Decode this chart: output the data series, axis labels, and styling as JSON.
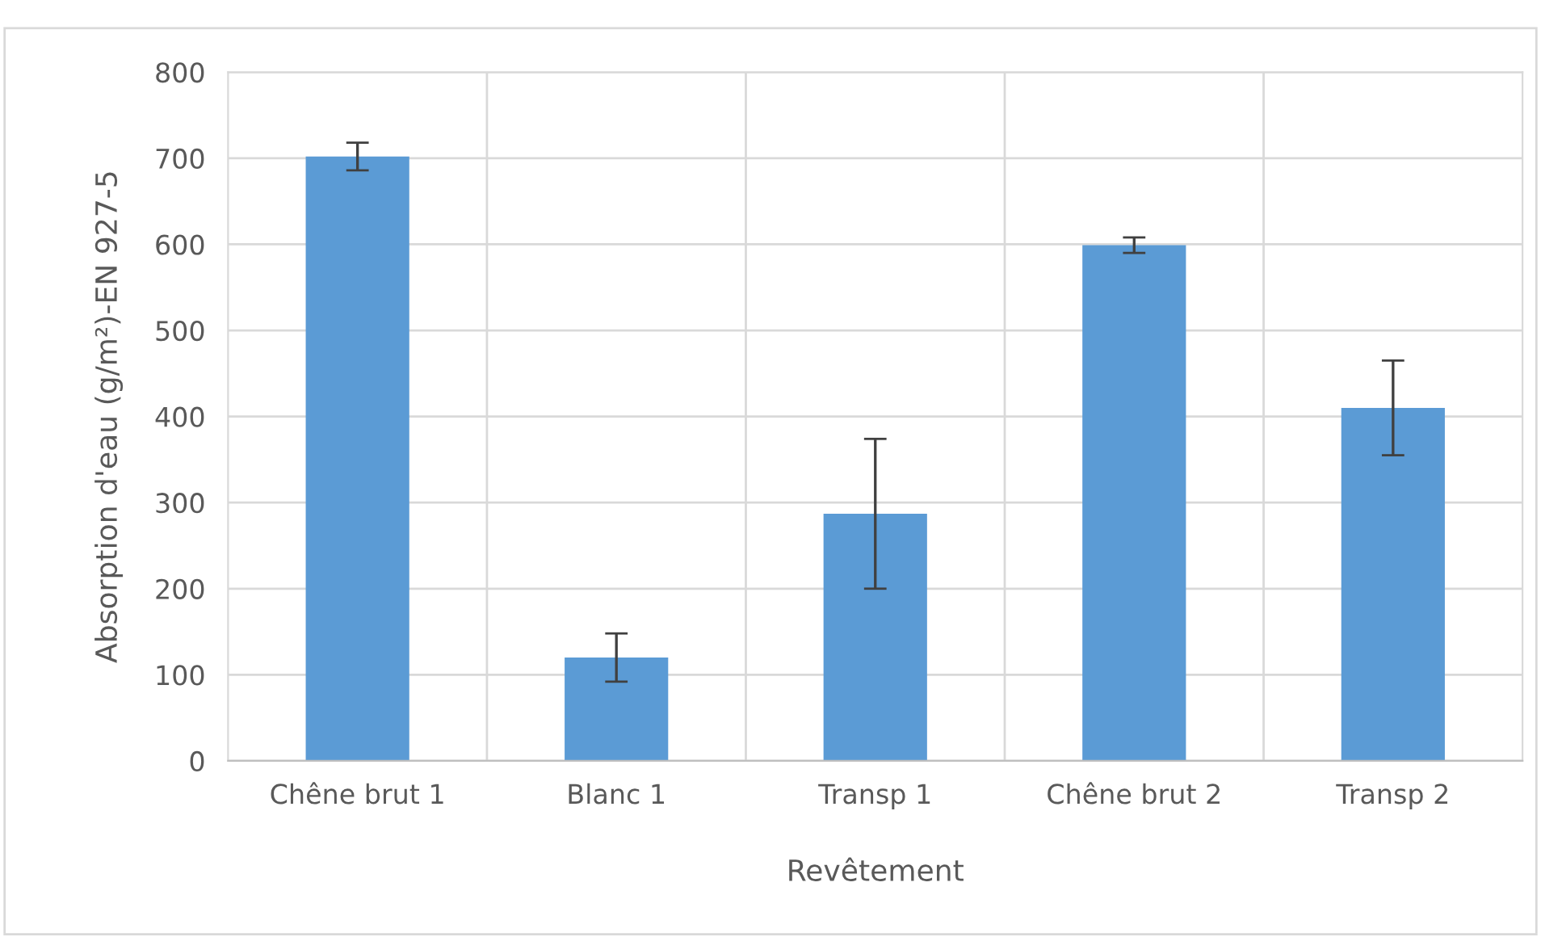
{
  "chart_data": {
    "type": "bar",
    "xlabel": "Revêtement",
    "ylabel": "Absorption d'eau (g/m²)-EN 927-5",
    "categories": [
      "Chêne brut 1",
      "Blanc 1",
      "Transp 1",
      "Chêne brut 2",
      "Transp 2"
    ],
    "values": [
      702,
      120,
      287,
      599,
      410
    ],
    "errors": [
      16,
      28,
      87,
      9,
      55
    ],
    "color": "#5b9bd5",
    "ylim": [
      0,
      800
    ],
    "yticks": [
      0,
      100,
      200,
      300,
      400,
      500,
      600,
      700,
      800
    ],
    "grid": true
  }
}
